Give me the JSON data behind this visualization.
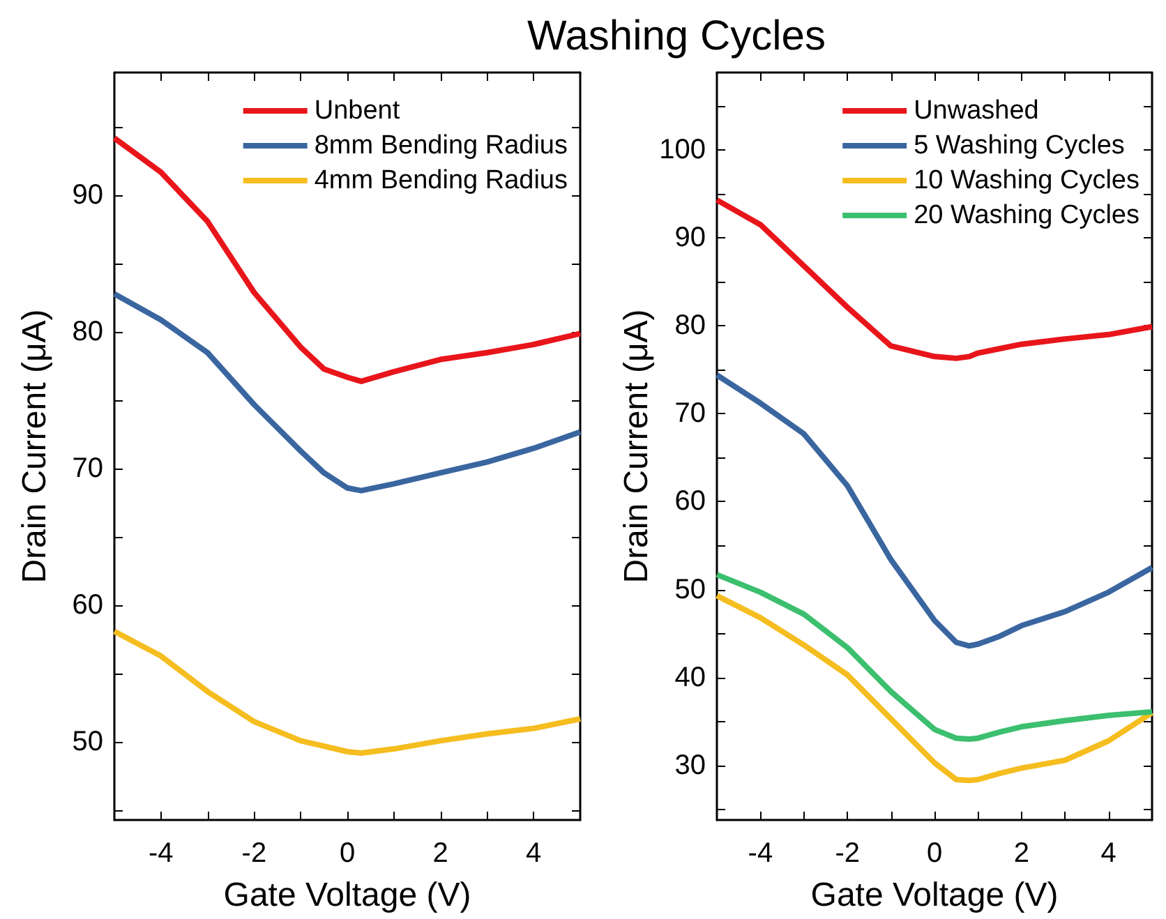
{
  "chart_data": [
    {
      "type": "line",
      "xlabel": "Gate Voltage (V)",
      "ylabel": "Drain Current (μA)",
      "legend": "top right",
      "grid": false,
      "xlim": [
        -5,
        5
      ],
      "xticks": [
        -4,
        {
          "value": -3,
          "label": null
        },
        -2,
        {
          "value": -1,
          "label": null
        },
        0,
        {
          "value": 1,
          "label": null
        },
        2,
        {
          "value": 3,
          "label": null
        },
        4
      ],
      "ylim": [
        44.3,
        99
      ],
      "yticks": [
        {
          "value": 45,
          "label": null
        },
        50,
        {
          "value": 55,
          "label": null
        },
        60,
        {
          "value": 65,
          "label": null
        },
        70,
        {
          "value": 75,
          "label": null
        },
        80,
        {
          "value": 85,
          "label": null
        },
        90,
        {
          "value": 95,
          "label": null
        }
      ],
      "x": [
        -5,
        -4,
        -3,
        -2,
        -1,
        -0.5,
        0,
        0.3,
        1,
        2,
        3,
        4,
        5
      ],
      "series": [
        {
          "name": "Unbent",
          "color": "#e8151b",
          "values": [
            94.2,
            91.7,
            88.1,
            82.9,
            78.9,
            77.3,
            76.7,
            76.4,
            77.1,
            78.0,
            78.5,
            79.1,
            79.9
          ]
        },
        {
          "name": "8mm Bending Radius",
          "color": "#3a66a0",
          "values": [
            82.8,
            80.9,
            78.5,
            74.7,
            71.3,
            69.7,
            68.6,
            68.4,
            68.9,
            69.7,
            70.5,
            71.5,
            72.7
          ]
        },
        {
          "name": "4mm Bending Radius",
          "color": "#f5bd1f",
          "values": [
            58.1,
            56.3,
            53.7,
            51.5,
            50.1,
            49.7,
            49.3,
            49.2,
            49.5,
            50.1,
            50.6,
            51.0,
            51.7
          ]
        }
      ]
    },
    {
      "type": "line",
      "title": "Washing Cycles",
      "xlabel": "Gate Voltage (V)",
      "ylabel": "Drain Current (μA)",
      "legend": "top right",
      "grid": false,
      "xlim": [
        -5,
        5
      ],
      "xticks": [
        -4,
        {
          "value": -3,
          "label": null
        },
        -2,
        {
          "value": -1,
          "label": null
        },
        0,
        {
          "value": 1,
          "label": null
        },
        2,
        {
          "value": 3,
          "label": null
        },
        4
      ],
      "ylim": [
        23.8,
        108.8
      ],
      "yticks": [
        {
          "value": 25,
          "label": null
        },
        30,
        {
          "value": 35,
          "label": null
        },
        40,
        {
          "value": 45,
          "label": null
        },
        50,
        {
          "value": 55,
          "label": null
        },
        60,
        {
          "value": 65,
          "label": null
        },
        70,
        {
          "value": 75,
          "label": null
        },
        80,
        {
          "value": 85,
          "label": null
        },
        90,
        {
          "value": 95,
          "label": null
        },
        100,
        {
          "value": 105,
          "label": null
        }
      ],
      "x": [
        -5,
        -4,
        -3,
        -2,
        -1,
        0,
        0.5,
        0.8,
        1,
        1.5,
        2,
        3,
        4,
        5
      ],
      "series": [
        {
          "name": "Unwashed",
          "color": "#e8151b",
          "values": [
            94.3,
            91.5,
            86.8,
            82.1,
            77.7,
            76.5,
            76.3,
            76.5,
            76.9,
            77.4,
            77.9,
            78.5,
            79.0,
            79.9
          ]
        },
        {
          "name": "5 Washing Cycles",
          "color": "#3a66a0",
          "values": [
            74.4,
            71.2,
            67.7,
            61.8,
            53.4,
            46.5,
            44.0,
            43.6,
            43.8,
            44.7,
            45.9,
            47.5,
            49.7,
            52.5
          ]
        },
        {
          "name": "10 Washing Cycles",
          "color": "#f5bd1f",
          "values": [
            49.3,
            46.8,
            43.7,
            40.3,
            35.3,
            30.3,
            28.4,
            28.3,
            28.4,
            29.1,
            29.7,
            30.6,
            32.8,
            36.0
          ]
        },
        {
          "name": "20 Washing Cycles",
          "color": "#3cbf6e",
          "values": [
            51.7,
            49.7,
            47.2,
            43.4,
            38.4,
            34.1,
            33.1,
            33.0,
            33.1,
            33.8,
            34.4,
            35.1,
            35.7,
            36.1
          ]
        }
      ]
    }
  ]
}
